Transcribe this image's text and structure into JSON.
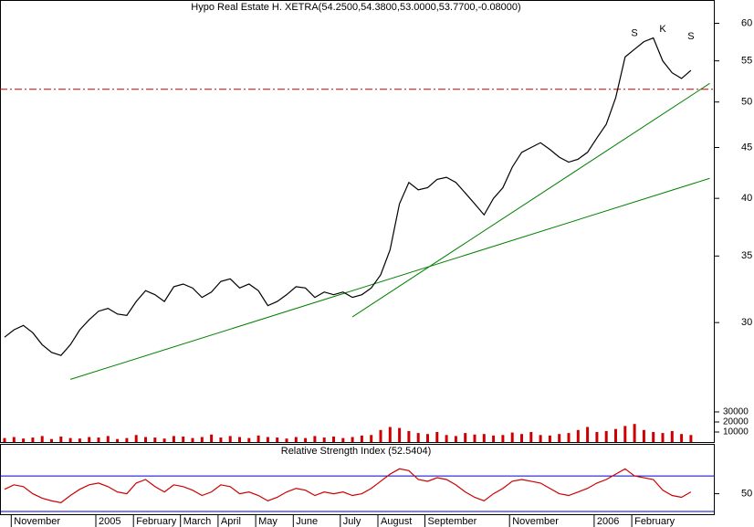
{
  "chart_data": [
    {
      "type": "line",
      "title": "Hypo Real Estate H. XETRA(54.2500,54.3800,53.0000,53.7700,-0.08000)",
      "log_scale": true,
      "categories": [
        null,
        "November",
        null,
        null,
        null,
        null,
        null,
        null,
        null,
        null,
        "2005",
        null,
        null,
        null,
        "February",
        null,
        null,
        null,
        null,
        "March",
        null,
        null,
        null,
        "April",
        null,
        null,
        null,
        "May",
        null,
        null,
        null,
        "June",
        null,
        null,
        null,
        null,
        "July",
        null,
        null,
        null,
        "August",
        null,
        null,
        null,
        null,
        "September",
        null,
        null,
        null,
        null,
        null,
        null,
        null,
        null,
        "November",
        null,
        null,
        null,
        null,
        null,
        null,
        null,
        null,
        "2006",
        null,
        null,
        null,
        "February",
        null,
        null,
        null,
        null,
        null,
        null
      ],
      "series": [
        {
          "color": "#000000",
          "values": [
            29,
            29.5,
            29.8,
            29.3,
            28.5,
            28,
            27.8,
            28.5,
            29.5,
            30.2,
            30.8,
            31,
            30.6,
            30.5,
            31.5,
            32.3,
            32,
            31.5,
            32.6,
            32.8,
            32.5,
            31.8,
            32.2,
            33,
            33.2,
            32.5,
            32.8,
            32.3,
            31.2,
            31.5,
            32,
            32.6,
            32.5,
            31.8,
            32.2,
            32,
            32.2,
            31.8,
            32,
            32.5,
            33.5,
            35.5,
            39.5,
            41.5,
            40.8,
            41,
            41.8,
            42,
            41.5,
            40.5,
            39.5,
            38.5,
            40,
            41,
            43,
            44.5,
            45,
            45.5,
            44.8,
            44,
            43.5,
            43.8,
            44.5,
            46,
            47.5,
            50.5,
            55.5,
            56.5,
            57.5,
            58,
            55,
            53.5,
            52.8,
            53.8
          ]
        }
      ],
      "trendlines": [
        {
          "color": "#008000",
          "from": [
            7,
            26.3
          ],
          "to": [
            75,
            41.9
          ]
        },
        {
          "color": "#008000",
          "from": [
            37,
            30.4
          ],
          "to": [
            75,
            52.2
          ]
        }
      ],
      "reference_line": {
        "value": 51.5,
        "color": "#cc0000"
      },
      "annotations": [
        {
          "text": "S",
          "x": 67,
          "y": 58.6
        },
        {
          "text": "K",
          "x": 70,
          "y": 59.2
        },
        {
          "text": "S",
          "x": 73,
          "y": 58.2
        }
      ],
      "ylim": [
        25.5,
        62
      ],
      "yticks": [
        30,
        35,
        40,
        45,
        50,
        55,
        60
      ]
    },
    {
      "type": "bar",
      "color": "#cc0000",
      "values": [
        4000,
        5000,
        3500,
        4500,
        6000,
        3000,
        5500,
        4000,
        3500,
        5000,
        4500,
        6000,
        3000,
        4000,
        7000,
        5000,
        4500,
        3500,
        6000,
        5500,
        4000,
        5000,
        7500,
        4500,
        6000,
        5000,
        4000,
        6500,
        5000,
        4500,
        3500,
        5000,
        4000,
        6000,
        4500,
        5500,
        4000,
        5000,
        6500,
        7000,
        12000,
        15000,
        14000,
        11000,
        9000,
        8000,
        10000,
        7000,
        6000,
        9000,
        7500,
        8000,
        6500,
        7000,
        9500,
        8000,
        10000,
        7000,
        6500,
        8000,
        9000,
        12000,
        15000,
        10000,
        11000,
        13000,
        16000,
        18000,
        12000,
        10000,
        9000,
        11000,
        8000,
        7000
      ],
      "ylim": [
        0,
        40000
      ],
      "yticks": [
        10000,
        20000,
        30000
      ]
    },
    {
      "type": "line",
      "title": "Relative Strength Index (52.5404)",
      "color": "#cc0000",
      "values": [
        55,
        60,
        58,
        50,
        45,
        42,
        40,
        48,
        55,
        60,
        62,
        58,
        52,
        50,
        62,
        66,
        58,
        52,
        60,
        58,
        54,
        48,
        52,
        60,
        58,
        50,
        52,
        48,
        42,
        46,
        52,
        56,
        54,
        48,
        52,
        50,
        52,
        48,
        50,
        56,
        64,
        72,
        78,
        76,
        66,
        64,
        68,
        66,
        60,
        52,
        46,
        42,
        50,
        56,
        64,
        66,
        64,
        62,
        56,
        50,
        48,
        52,
        56,
        62,
        66,
        72,
        78,
        70,
        68,
        66,
        54,
        48,
        46,
        52
      ],
      "hlines": {
        "values": [
          30,
          70
        ],
        "color": "#0000cc"
      },
      "ylim": [
        28,
        104
      ],
      "yticks": [
        50
      ]
    }
  ]
}
